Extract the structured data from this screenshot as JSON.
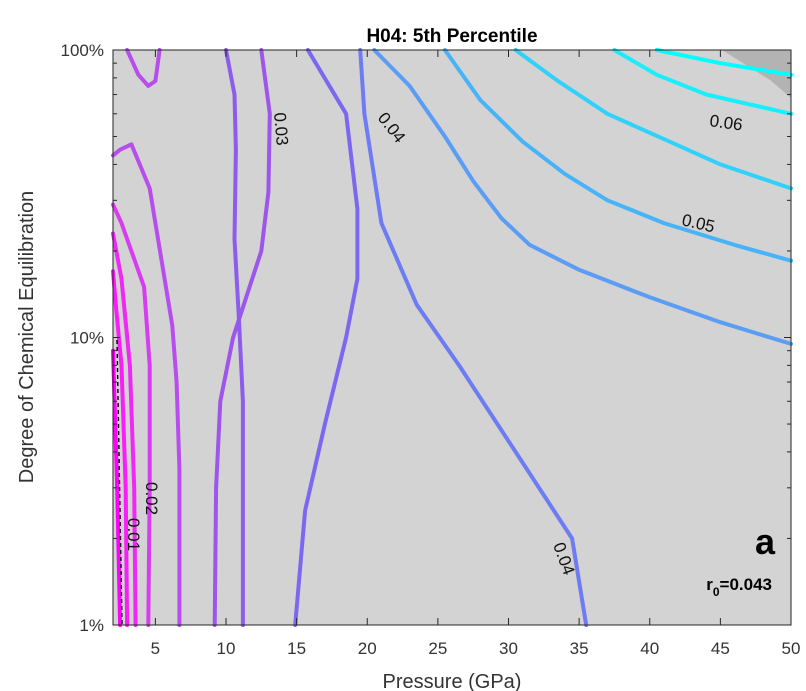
{
  "chart_data": {
    "type": "contour",
    "title": "H04: 5th Percentile",
    "xlabel": "Pressure (GPa)",
    "ylabel": "Degree of Chemical Equilibration",
    "xlim": [
      2,
      50
    ],
    "ylim": [
      1,
      100
    ],
    "yscale": "log",
    "xticks": [
      5,
      10,
      15,
      20,
      25,
      30,
      35,
      40,
      45,
      50
    ],
    "yticks": [
      1,
      10,
      100
    ],
    "ytick_labels": [
      "1%",
      "10%",
      "100%"
    ],
    "background_color": "#d3d3d3",
    "panel_label": "a",
    "annotation": {
      "prefix": "r",
      "subscript": "0",
      "suffix": "=0.043"
    },
    "contour_labels": [
      "0.01",
      "0.02",
      "0.03",
      "0.04",
      "0.04",
      "0.05",
      "0.06"
    ],
    "contours": [
      {
        "level": "0.01",
        "color": "#ff00ff",
        "points": [
          [
            2.5,
            1
          ],
          [
            2.3,
            3
          ],
          [
            2.0,
            9
          ]
        ]
      },
      {
        "level": "0.01",
        "color": "#f81ef8",
        "points": [
          [
            3.0,
            1
          ],
          [
            2.9,
            3
          ],
          [
            2.6,
            8
          ],
          [
            2.2,
            13
          ],
          [
            2.0,
            17
          ]
        ]
      },
      {
        "level": "0.01",
        "color": "#f028f5",
        "points": [
          [
            3.6,
            1
          ],
          [
            3.5,
            3
          ],
          [
            3.2,
            8
          ],
          [
            2.6,
            16
          ],
          [
            2.0,
            23
          ]
        ]
      },
      {
        "level": "0.02",
        "color": "#d83cf0",
        "points": [
          [
            4.5,
            1
          ],
          [
            4.6,
            3
          ],
          [
            4.6,
            8
          ],
          [
            4.2,
            15
          ],
          [
            2.6,
            25
          ],
          [
            2.0,
            29
          ]
        ]
      },
      {
        "level": "0.02",
        "color": "#b94cec",
        "points": [
          [
            6.7,
            1
          ],
          [
            6.7,
            3.5
          ],
          [
            6.5,
            7
          ],
          [
            6.2,
            11
          ],
          [
            4.6,
            33
          ],
          [
            3.3,
            47
          ],
          [
            2.5,
            45
          ],
          [
            2.0,
            43
          ]
        ]
      },
      {
        "level": "0.02",
        "color": "#b94cec",
        "points": [
          [
            3.0,
            100
          ],
          [
            3.8,
            82
          ],
          [
            4.5,
            75
          ],
          [
            5.0,
            78
          ],
          [
            5.3,
            100
          ]
        ]
      },
      {
        "level": "0.03",
        "color": "#9e55ec",
        "points": [
          [
            9.2,
            1
          ],
          [
            9.3,
            3
          ],
          [
            9.6,
            6
          ],
          [
            10.5,
            10
          ],
          [
            12.5,
            20
          ],
          [
            13.0,
            32
          ],
          [
            13.1,
            60
          ],
          [
            12.5,
            100
          ]
        ]
      },
      {
        "level": "0.03",
        "color": "#8c5cec",
        "points": [
          [
            10.0,
            100
          ],
          [
            10.6,
            70
          ],
          [
            10.7,
            45
          ],
          [
            10.6,
            22
          ],
          [
            10.9,
            12
          ],
          [
            11.2,
            6
          ],
          [
            11.2,
            1
          ]
        ]
      },
      {
        "level": "0.04",
        "color": "#7b68f0",
        "points": [
          [
            14.9,
            1
          ],
          [
            15.6,
            2.5
          ],
          [
            17.0,
            5
          ],
          [
            18.5,
            10
          ],
          [
            19.3,
            16
          ],
          [
            19.3,
            28
          ],
          [
            18.5,
            60
          ],
          [
            15.8,
            100
          ]
        ]
      },
      {
        "level": "0.04",
        "color": "#6e7cf3",
        "points": [
          [
            35.5,
            1
          ],
          [
            34.5,
            2
          ],
          [
            30.5,
            4
          ],
          [
            26.5,
            8
          ],
          [
            23.5,
            13
          ],
          [
            21.0,
            25
          ],
          [
            19.8,
            60
          ],
          [
            19.5,
            100
          ]
        ]
      },
      {
        "level": "0.04",
        "color": "#5b9df5",
        "points": [
          [
            50,
            9.5
          ],
          [
            45,
            11.3
          ],
          [
            40,
            13.8
          ],
          [
            35,
            17.2
          ],
          [
            31.5,
            21
          ],
          [
            29.5,
            26
          ],
          [
            27.5,
            35
          ],
          [
            25.5,
            50
          ],
          [
            23,
            75
          ],
          [
            20.5,
            100
          ]
        ]
      },
      {
        "level": "0.05",
        "color": "#48b3f8",
        "points": [
          [
            50,
            18.5
          ],
          [
            46,
            21
          ],
          [
            41,
            25
          ],
          [
            37,
            30
          ],
          [
            34,
            37
          ],
          [
            31,
            48
          ],
          [
            28,
            67
          ],
          [
            25.5,
            100
          ]
        ]
      },
      {
        "level": "0.06",
        "color": "#30d2fb",
        "points": [
          [
            50,
            33
          ],
          [
            45,
            40
          ],
          [
            41,
            49
          ],
          [
            37,
            60
          ],
          [
            33.5,
            78
          ],
          [
            30.5,
            100
          ]
        ]
      },
      {
        "level": "0.06",
        "color": "#18eefd",
        "points": [
          [
            50,
            60
          ],
          [
            44,
            70
          ],
          [
            40.5,
            82
          ],
          [
            37.5,
            100
          ]
        ]
      },
      {
        "level": "0.06",
        "color": "#00ffff",
        "points": [
          [
            50,
            82
          ],
          [
            45,
            90
          ],
          [
            40.5,
            100
          ]
        ]
      }
    ]
  }
}
